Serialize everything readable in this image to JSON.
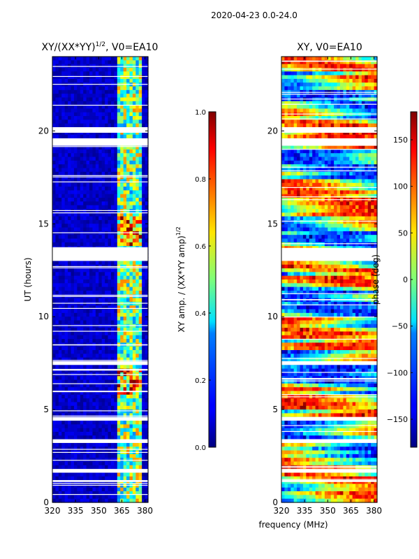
{
  "suptitle": "2020-04-23 0.0-24.0",
  "shared_xlabel": "frequency (MHz)",
  "chart_data": [
    {
      "type": "heatmap",
      "title_main": "XY/(XX*YY)",
      "title_exp": "1/2",
      "title_tail": ", V0=EA10",
      "ylabel": "UT (hours)",
      "xlim": [
        320,
        382
      ],
      "ylim": [
        0,
        24
      ],
      "xticks": [
        320,
        335,
        350,
        365,
        380
      ],
      "yticks": [
        0,
        5,
        10,
        15,
        20
      ],
      "colorbar": {
        "label_main": "XY amp. / (XX*YY amp)",
        "label_exp": "1/2",
        "vmin": 0.0,
        "vmax": 1.0,
        "ticks": [
          "0.0",
          "0.2",
          "0.4",
          "0.6",
          "0.8",
          "1.0"
        ],
        "tick_values": [
          0.0,
          0.2,
          0.4,
          0.6,
          0.8,
          1.0
        ]
      },
      "flagged_ut_ranges_hours": [
        [
          13.0,
          13.7
        ],
        [
          19.2,
          19.6
        ],
        [
          19.9,
          20.2
        ],
        [
          7.4,
          7.6
        ],
        [
          4.4,
          4.6
        ],
        [
          3.2,
          3.4
        ],
        [
          1.6,
          1.8
        ],
        [
          1.1,
          1.2
        ]
      ],
      "bright_band_mhz": [
        362,
        378
      ]
    },
    {
      "type": "heatmap",
      "title": "XY, V0=EA10",
      "ylabel": "",
      "xlim": [
        320,
        382
      ],
      "ylim": [
        0,
        24
      ],
      "xticks": [
        320,
        335,
        350,
        365,
        380
      ],
      "yticks": [
        0,
        5,
        10,
        15,
        20
      ],
      "colorbar": {
        "label": "phase (deg)",
        "vmin": -180,
        "vmax": 180,
        "ticks": [
          "−150",
          "−100",
          "−50",
          "0",
          "50",
          "100",
          "150"
        ],
        "tick_values": [
          -150,
          -100,
          -50,
          0,
          50,
          100,
          150
        ]
      },
      "flagged_ut_ranges_hours": [
        [
          13.0,
          13.7
        ],
        [
          19.2,
          19.6
        ],
        [
          19.9,
          20.2
        ],
        [
          7.4,
          7.6
        ],
        [
          4.4,
          4.6
        ],
        [
          3.2,
          3.4
        ],
        [
          1.6,
          1.8
        ],
        [
          1.1,
          1.2
        ]
      ]
    }
  ]
}
